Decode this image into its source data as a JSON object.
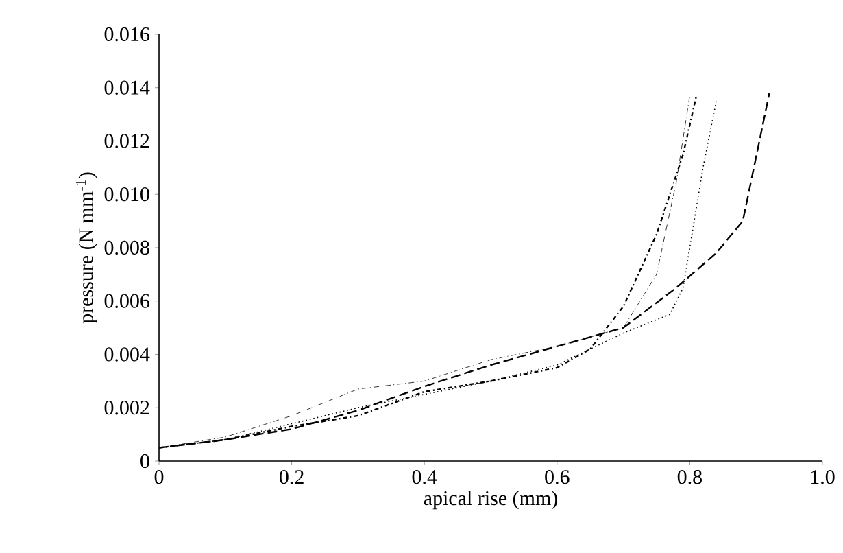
{
  "chart_data": {
    "type": "line",
    "xlabel": "apical rise (mm)",
    "ylabel": "pressure (N mm$^{-1}$)",
    "xlim": [
      0,
      1.0
    ],
    "xticks": [
      0,
      0.2,
      0.4,
      0.6,
      0.8,
      {
        "value": 1.0,
        "label": "1.0"
      }
    ],
    "ylim": [
      0,
      0.016
    ],
    "yticks": [
      0,
      {
        "value": 0.002,
        "label": "0.002"
      },
      {
        "value": 0.004,
        "label": "0.004"
      },
      {
        "value": 0.006,
        "label": "0.006"
      },
      {
        "value": 0.008,
        "label": "0.008"
      },
      {
        "value": 0.01,
        "label": "0.010"
      },
      {
        "value": 0.012,
        "label": "0.012"
      },
      {
        "value": 0.014,
        "label": "0.014"
      },
      {
        "value": 0.016,
        "label": "0.016"
      }
    ],
    "grid": false,
    "marker": "none",
    "series": [
      {
        "color": "#000000",
        "line_style": "dashed",
        "x": [
          0,
          0.1,
          0.2,
          0.3,
          0.4,
          0.5,
          0.6,
          0.7,
          0.78,
          0.84,
          0.88,
          0.92
        ],
        "values": [
          0.0005,
          0.0008,
          0.0012,
          0.0019,
          0.0028,
          0.0036,
          0.0043,
          0.005,
          0.0065,
          0.0078,
          0.009,
          0.0138
        ]
      },
      {
        "color": "#000000",
        "line_style": "dashdot",
        "x": [
          0,
          0.1,
          0.2,
          0.3,
          0.4,
          0.5,
          0.6,
          0.7,
          0.75,
          0.78,
          0.8
        ],
        "values": [
          0.0005,
          0.0009,
          0.0017,
          0.0027,
          0.003,
          0.0038,
          0.0043,
          0.005,
          0.007,
          0.0105,
          0.0137
        ]
      },
      {
        "color": "#000000",
        "line_style": "dashdotdot",
        "x": [
          0,
          0.1,
          0.2,
          0.3,
          0.4,
          0.5,
          0.6,
          0.65,
          0.7,
          0.75,
          0.79,
          0.81
        ],
        "values": [
          0.0005,
          0.0008,
          0.0013,
          0.0017,
          0.0026,
          0.003,
          0.0035,
          0.0042,
          0.0058,
          0.0085,
          0.0115,
          0.0137
        ]
      },
      {
        "color": "#000000",
        "line_style": "dotted",
        "x": [
          0,
          0.1,
          0.2,
          0.3,
          0.4,
          0.5,
          0.6,
          0.7,
          0.77,
          0.79,
          0.82,
          0.84
        ],
        "values": [
          0.0005,
          0.0008,
          0.0014,
          0.002,
          0.0025,
          0.003,
          0.0036,
          0.0048,
          0.0055,
          0.0065,
          0.011,
          0.0135
        ]
      }
    ]
  }
}
